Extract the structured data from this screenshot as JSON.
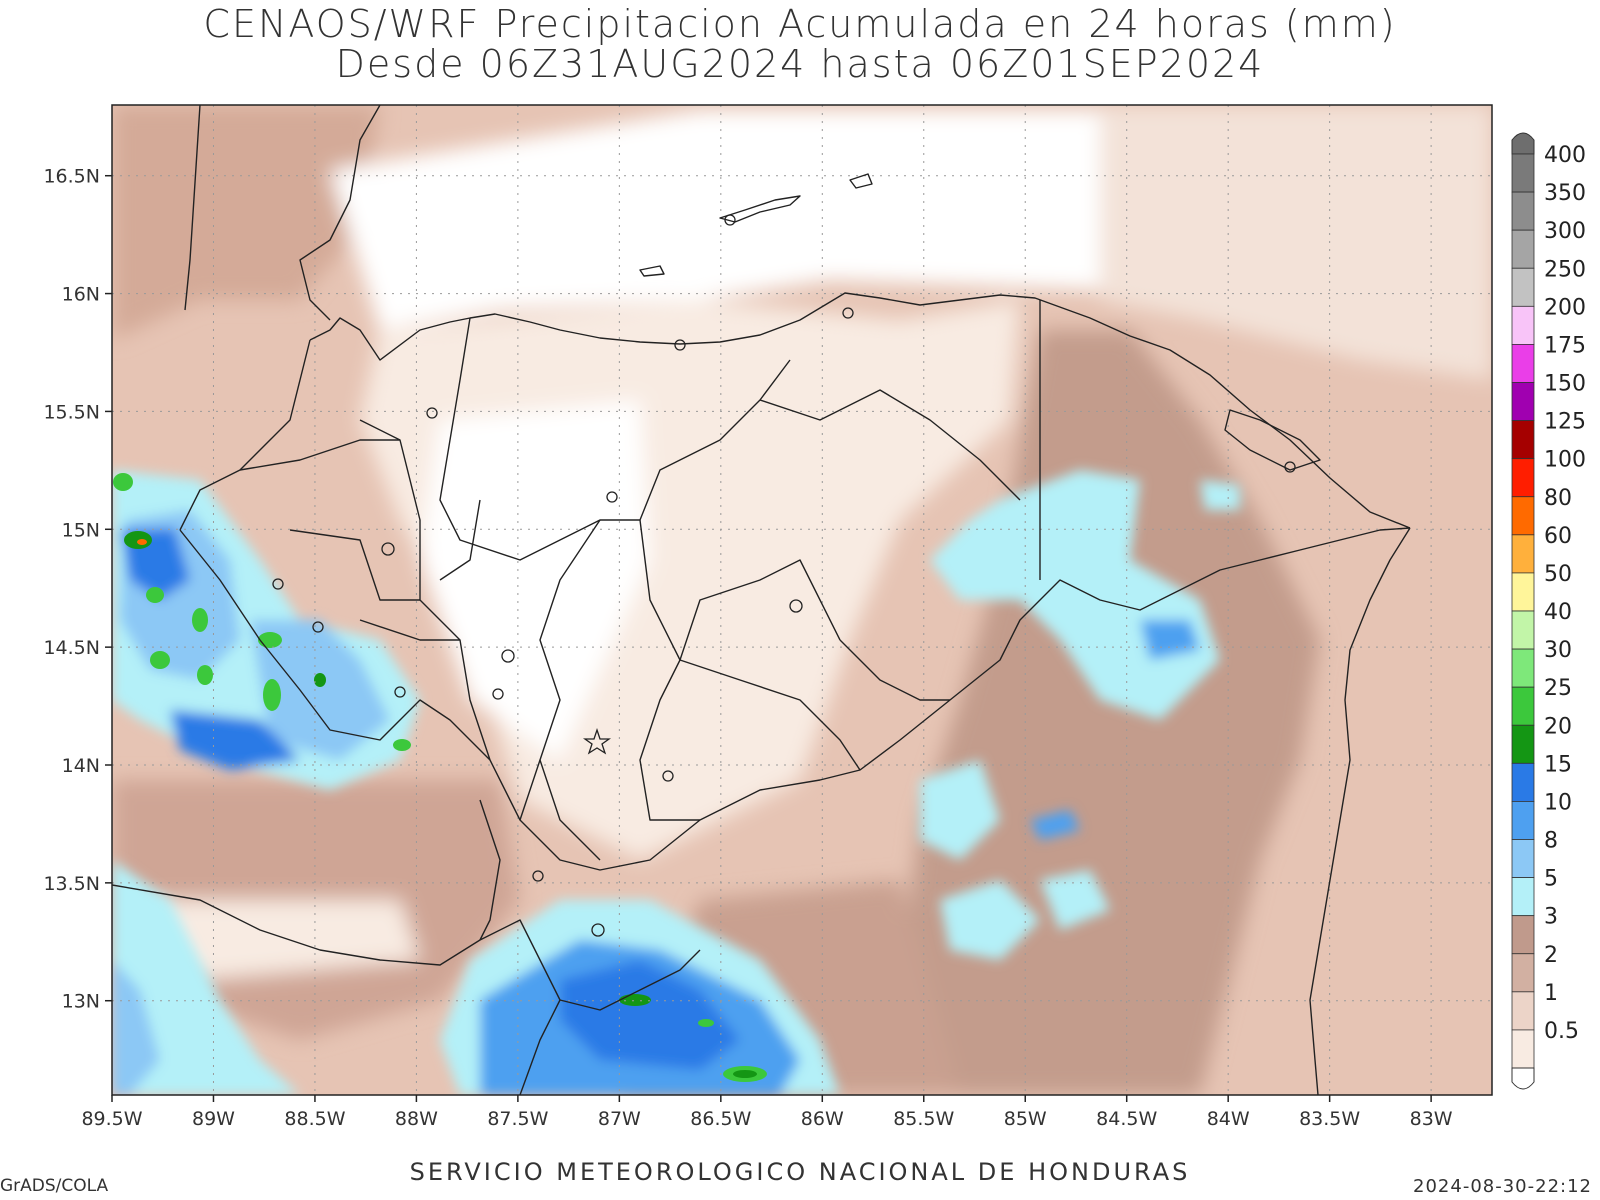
{
  "title_line1": "CENAOS/WRF Precipitacion Acumulada en 24 horas (mm)",
  "title_line2": "Desde 06Z31AUG2024 hasta 06Z01SEP2024",
  "footer_center": "SERVICIO METEOROLOGICO NACIONAL DE HONDURAS",
  "footer_left": "GrADS/COLA",
  "footer_right": "2024-08-30-22:12",
  "map": {
    "lon_range": [
      -89.5,
      -82.7
    ],
    "lat_range": [
      12.6,
      16.8
    ],
    "lat_ticks": [
      {
        "value": 16.5,
        "label": "16.5N"
      },
      {
        "value": 16.0,
        "label": "16N"
      },
      {
        "value": 15.5,
        "label": "15.5N"
      },
      {
        "value": 15.0,
        "label": "15N"
      },
      {
        "value": 14.5,
        "label": "14.5N"
      },
      {
        "value": 14.0,
        "label": "14N"
      },
      {
        "value": 13.5,
        "label": "13.5N"
      },
      {
        "value": 13.0,
        "label": "13N"
      }
    ],
    "lon_ticks": [
      {
        "value": -89.5,
        "label": "89.5W"
      },
      {
        "value": -89.0,
        "label": "89W"
      },
      {
        "value": -88.5,
        "label": "88.5W"
      },
      {
        "value": -88.0,
        "label": "88W"
      },
      {
        "value": -87.5,
        "label": "87.5W"
      },
      {
        "value": -87.0,
        "label": "87W"
      },
      {
        "value": -86.5,
        "label": "86.5W"
      },
      {
        "value": -86.0,
        "label": "86W"
      },
      {
        "value": -85.5,
        "label": "85.5W"
      },
      {
        "value": -85.0,
        "label": "85W"
      },
      {
        "value": -84.5,
        "label": "84.5W"
      },
      {
        "value": -84.0,
        "label": "84W"
      },
      {
        "value": -83.5,
        "label": "83.5W"
      },
      {
        "value": -83.0,
        "label": "83W"
      }
    ],
    "grid": true
  },
  "colorbar": {
    "levels": [
      {
        "label": "400",
        "color": "#7a7a7a"
      },
      {
        "label": "350",
        "color": "#8d8d8d"
      },
      {
        "label": "300",
        "color": "#a5a5a5"
      },
      {
        "label": "250",
        "color": "#c2c2c2"
      },
      {
        "label": "200",
        "color": "#f8c4f8"
      },
      {
        "label": "175",
        "color": "#ea3ee8"
      },
      {
        "label": "150",
        "color": "#a000b0"
      },
      {
        "label": "125",
        "color": "#a50000"
      },
      {
        "label": "100",
        "color": "#ff1e00"
      },
      {
        "label": "80",
        "color": "#ff6a00"
      },
      {
        "label": "60",
        "color": "#ffb03c"
      },
      {
        "label": "50",
        "color": "#fff59a"
      },
      {
        "label": "40",
        "color": "#c2f5a8"
      },
      {
        "label": "30",
        "color": "#7ee87a"
      },
      {
        "label": "25",
        "color": "#3cc83c"
      },
      {
        "label": "20",
        "color": "#149614"
      },
      {
        "label": "15",
        "color": "#2a7ae6"
      },
      {
        "label": "10",
        "color": "#4ea0f0"
      },
      {
        "label": "8",
        "color": "#8cc8f5"
      },
      {
        "label": "5",
        "color": "#b4f0f8"
      },
      {
        "label": "3",
        "color": "#c09a8c"
      },
      {
        "label": "2",
        "color": "#d2b0a2"
      },
      {
        "label": "1",
        "color": "#ecd4c8"
      },
      {
        "label": "0.5",
        "color": "#f8ebe2"
      }
    ],
    "top_cap_color": "#6e6e6e",
    "bottom_cap_color": "#ffffff"
  }
}
